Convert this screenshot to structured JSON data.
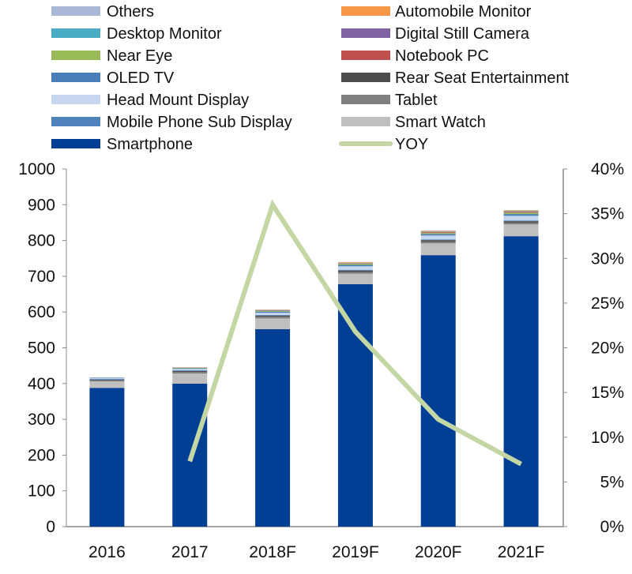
{
  "chart_data": {
    "type": "bar",
    "stacked": true,
    "categories": [
      "2016",
      "2017",
      "2018F",
      "2019F",
      "2020F",
      "2021F"
    ],
    "ylim": [
      0,
      1000
    ],
    "yticks": [
      "0",
      "100",
      "200",
      "300",
      "400",
      "500",
      "600",
      "700",
      "800",
      "900",
      "1000"
    ],
    "y2lim": [
      0,
      40
    ],
    "y2ticks": [
      "0%",
      "5%",
      "10%",
      "15%",
      "20%",
      "25%",
      "30%",
      "35%",
      "40%"
    ],
    "legend_position": "top",
    "series": [
      {
        "name": "Smartphone",
        "color": "#003f94",
        "values": [
          388,
          400,
          552,
          678,
          759,
          812
        ]
      },
      {
        "name": "Smart Watch",
        "color": "#bfbfbf",
        "values": [
          18,
          28,
          30,
          29,
          33,
          33
        ]
      },
      {
        "name": "Tablet",
        "color": "#7f7f7f",
        "values": [
          3,
          4,
          5,
          5,
          5,
          5
        ]
      },
      {
        "name": "Rear Seat Entertainment",
        "color": "#4d4d4d",
        "values": [
          2,
          3,
          3,
          4,
          4,
          4
        ]
      },
      {
        "name": "Mobile Phone Sub Display",
        "color": "#4f81bd",
        "values": [
          2,
          2,
          2,
          2,
          2,
          2
        ]
      },
      {
        "name": "Head Mount Display",
        "color": "#c5d6ee",
        "values": [
          2,
          4,
          6,
          10,
          11,
          13
        ]
      },
      {
        "name": "OLED TV",
        "color": "#4a7ebb",
        "values": [
          1,
          2,
          3,
          4,
          4,
          5
        ]
      },
      {
        "name": "Near Eye",
        "color": "#9bbb59",
        "values": [
          0,
          1,
          2,
          3,
          3,
          4
        ]
      },
      {
        "name": "Notebook PC",
        "color": "#c0504d",
        "values": [
          0,
          0,
          1,
          1,
          2,
          2
        ]
      },
      {
        "name": "Digital Still Camera",
        "color": "#8064a2",
        "values": [
          0,
          0,
          0,
          0,
          1,
          1
        ]
      },
      {
        "name": "Desktop Monitor",
        "color": "#4bacc6",
        "values": [
          0,
          0,
          1,
          1,
          1,
          1
        ]
      },
      {
        "name": "Automobile Monitor",
        "color": "#f79646",
        "values": [
          0,
          1,
          1,
          2,
          2,
          2
        ]
      },
      {
        "name": "Others",
        "color": "#a9b8d8",
        "values": [
          1,
          1,
          1,
          1,
          1,
          1
        ]
      }
    ],
    "line_series": {
      "name": "YOY",
      "color": "#c3d6a4",
      "axis": "right",
      "values": [
        null,
        7.3,
        36.0,
        21.8,
        12.0,
        7.0
      ]
    },
    "legend": {
      "left": [
        "Others",
        "Desktop Monitor",
        "Near Eye",
        "OLED TV",
        "Head Mount Display",
        "Mobile Phone Sub Display",
        "Smartphone"
      ],
      "right": [
        "Automobile Monitor",
        "Digital Still Camera",
        "Notebook PC",
        "Rear Seat Entertainment",
        "Tablet",
        "Smart Watch",
        "YOY"
      ]
    }
  }
}
